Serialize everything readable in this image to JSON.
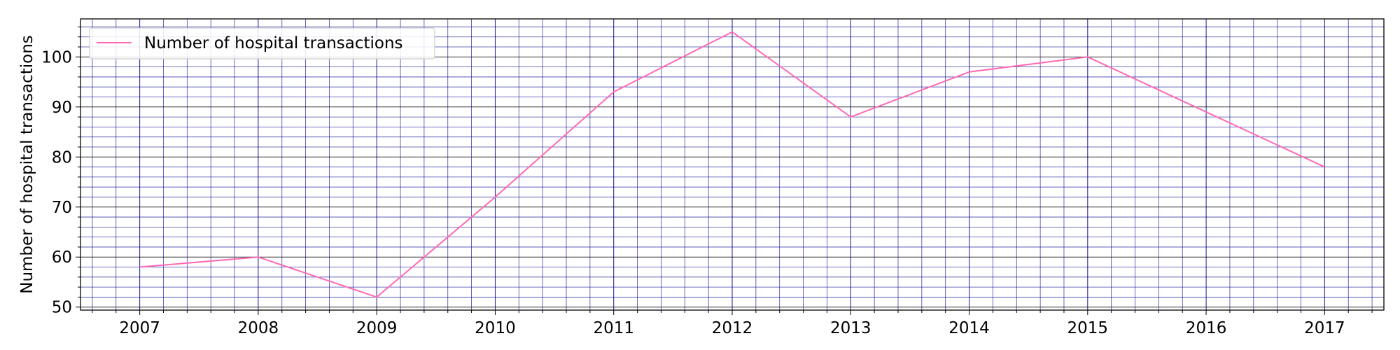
{
  "chart_data": {
    "type": "line",
    "title": "",
    "xlabel": "",
    "ylabel": "Number of hospital transactions",
    "x": [
      2007,
      2008,
      2009,
      2010,
      2011,
      2012,
      2013,
      2014,
      2015,
      2016,
      2017
    ],
    "series": [
      {
        "name": "Number of hospital transactions",
        "values": [
          58,
          60,
          52,
          72,
          93,
          105,
          88,
          97,
          100,
          89,
          78
        ],
        "color": "#ff69b4"
      }
    ],
    "xlim": [
      2006.5,
      2017.5
    ],
    "ylim": [
      49.4,
      107.6
    ],
    "yticks": [
      50,
      60,
      70,
      80,
      90,
      100
    ],
    "xticks": [
      2007,
      2008,
      2009,
      2010,
      2011,
      2012,
      2013,
      2014,
      2015,
      2016,
      2017
    ],
    "grid": true,
    "grid_color": "#00008b",
    "legend_position": "upper-left"
  }
}
